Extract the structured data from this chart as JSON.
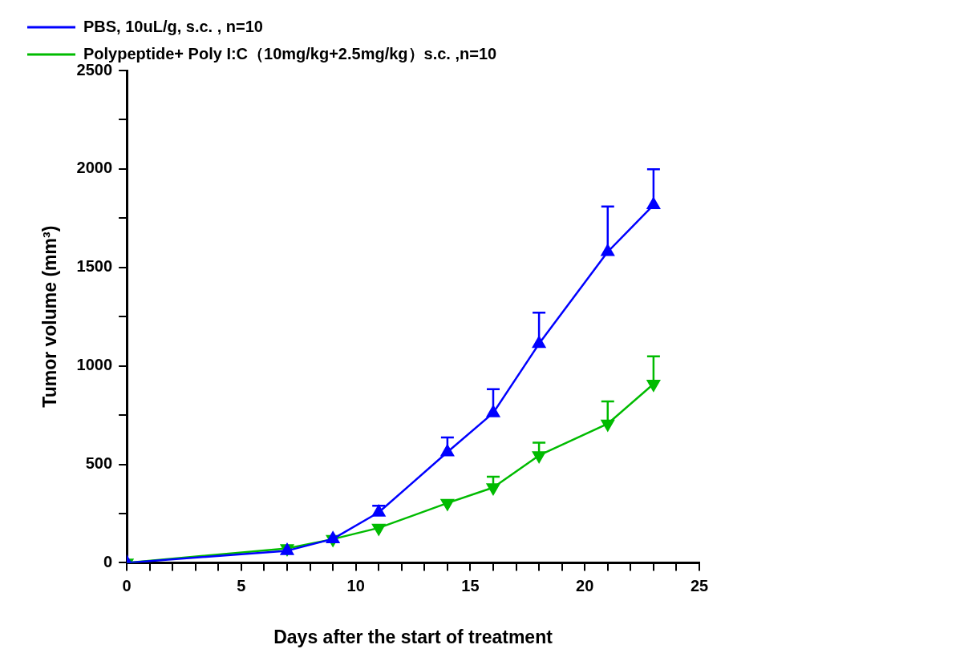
{
  "chart_data": {
    "type": "line",
    "xlabel": "Days after the start of treatment",
    "ylabel": "Tumor volume (mm³)",
    "xlim": [
      0,
      25
    ],
    "ylim": [
      0,
      2500
    ],
    "xticks": [
      0,
      {
        "value": 1,
        "label": null
      },
      {
        "value": 2,
        "label": null
      },
      {
        "value": 3,
        "label": null
      },
      {
        "value": 4,
        "label": null
      },
      5,
      {
        "value": 6,
        "label": null
      },
      {
        "value": 7,
        "label": null
      },
      {
        "value": 8,
        "label": null
      },
      {
        "value": 9,
        "label": null
      },
      10,
      {
        "value": 11,
        "label": null
      },
      {
        "value": 12,
        "label": null
      },
      {
        "value": 13,
        "label": null
      },
      {
        "value": 14,
        "label": null
      },
      15,
      {
        "value": 16,
        "label": null
      },
      {
        "value": 17,
        "label": null
      },
      {
        "value": 18,
        "label": null
      },
      {
        "value": 19,
        "label": null
      },
      20,
      {
        "value": 21,
        "label": null
      },
      {
        "value": 22,
        "label": null
      },
      {
        "value": 23,
        "label": null
      },
      {
        "value": 24,
        "label": null
      },
      25
    ],
    "yticks": [
      0,
      {
        "value": 250,
        "label": null
      },
      500,
      {
        "value": 750,
        "label": null
      },
      1000,
      {
        "value": 1250,
        "label": null
      },
      1500,
      {
        "value": 1750,
        "label": null
      },
      2000,
      {
        "value": 2250,
        "label": null
      },
      2500
    ],
    "grid": false,
    "legend": "top left",
    "line_style": "solid",
    "series": [
      {
        "name": "PBS, 10uL/g, s.c. , n=10",
        "color": "#0000ff",
        "marker": "triangle",
        "x": [
          0,
          7,
          9,
          11,
          14,
          16,
          18,
          21,
          23
        ],
        "values": [
          0,
          61,
          121,
          256,
          562,
          761,
          1112,
          1579,
          1817
        ],
        "errors": [
          null,
          null,
          null,
          [
            256,
            290
          ],
          [
            562,
            636
          ],
          [
            761,
            882
          ],
          [
            1112,
            1270
          ],
          [
            1579,
            1809
          ],
          [
            1817,
            1998
          ]
        ]
      },
      {
        "name": "Polypeptide+ Poly I:C（10mg/kg+2.5mg/kg）s.c. ,n=10",
        "color": "#00bb00",
        "marker": "triangle_down",
        "x": [
          0,
          7,
          9,
          11,
          14,
          16,
          18,
          21,
          23
        ],
        "values": [
          0,
          73,
          120,
          177,
          303,
          382,
          545,
          706,
          908
        ],
        "errors": [
          null,
          null,
          null,
          null,
          null,
          [
            382,
            437
          ],
          [
            545,
            610
          ],
          [
            706,
            819
          ],
          [
            908,
            1048
          ]
        ]
      }
    ]
  }
}
